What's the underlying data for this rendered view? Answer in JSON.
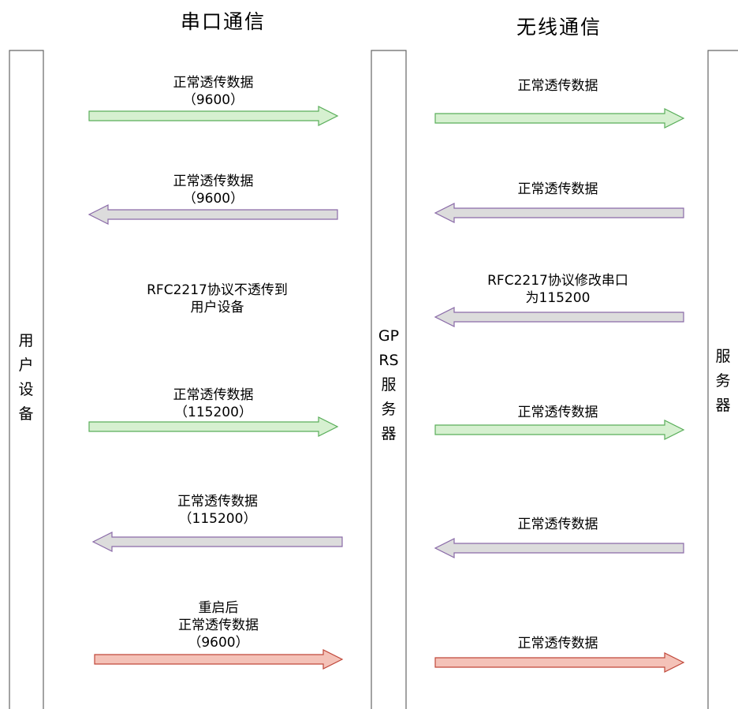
{
  "headers": {
    "serial": "串口通信",
    "wireless": "无线通信"
  },
  "lanes": {
    "user_device": [
      "用",
      "户",
      "设",
      "备"
    ],
    "gprs_server": [
      "GP",
      "RS",
      "服",
      "务",
      "器"
    ],
    "server": [
      "服",
      "务",
      "器"
    ]
  },
  "colors": {
    "green_fill": "#d6f0d0",
    "green_stroke": "#5aae5a",
    "purple_fill": "#dcdcdc",
    "purple_stroke": "#8a6aa8",
    "red_fill": "#f4c2b8",
    "red_stroke": "#c0483a",
    "lane_stroke": "#666666"
  },
  "messages": [
    {
      "left": {
        "lines": [
          "正常透传数据",
          "（9600）"
        ],
        "direction": "right",
        "color": "green"
      },
      "right": {
        "lines": [
          "正常透传数据"
        ],
        "direction": "right",
        "color": "green"
      }
    },
    {
      "left": {
        "lines": [
          "正常透传数据",
          "（9600）"
        ],
        "direction": "left",
        "color": "purple"
      },
      "right": {
        "lines": [
          "正常透传数据"
        ],
        "direction": "left",
        "color": "purple"
      }
    },
    {
      "left": {
        "lines": [
          "RFC2217协议不透传到",
          "用户设备"
        ],
        "direction": "none",
        "color": "none"
      },
      "right": {
        "lines": [
          "RFC2217协议修改串口",
          "为115200"
        ],
        "direction": "left",
        "color": "purple"
      }
    },
    {
      "left": {
        "lines": [
          "正常透传数据",
          "（115200）"
        ],
        "direction": "right",
        "color": "green"
      },
      "right": {
        "lines": [
          "正常透传数据"
        ],
        "direction": "right",
        "color": "green"
      }
    },
    {
      "left": {
        "lines": [
          "正常透传数据",
          "（115200）"
        ],
        "direction": "left",
        "color": "purple"
      },
      "right": {
        "lines": [
          "正常透传数据"
        ],
        "direction": "left",
        "color": "purple"
      }
    },
    {
      "left": {
        "lines": [
          "重启后",
          "正常透传数据",
          "（9600）"
        ],
        "direction": "right",
        "color": "red"
      },
      "right": {
        "lines": [
          "正常透传数据"
        ],
        "direction": "right",
        "color": "red"
      }
    }
  ]
}
